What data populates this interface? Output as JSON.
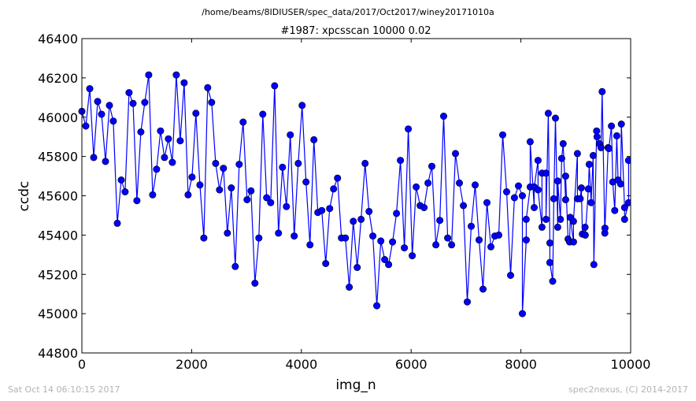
{
  "header": {
    "path": "/home/beams/8IDIUSER/spec_data/2017/Oct2017/winey20171010a"
  },
  "footer": {
    "timestamp": "Sat Oct 14 06:10:15 2017",
    "credit": "spec2nexus, (C) 2014-2017"
  },
  "chart_data": {
    "type": "line",
    "title": "#1987: xpcsscan 10000 0.02",
    "xlabel": "img_n",
    "ylabel": "ccdc",
    "xlim": [
      0,
      10000
    ],
    "ylim": [
      44800,
      46400
    ],
    "xticks": [
      0,
      2000,
      4000,
      6000,
      8000,
      10000
    ],
    "yticks": [
      44800,
      45000,
      45200,
      45400,
      45600,
      45800,
      46000,
      46200,
      46400
    ],
    "xtick_labels": [
      "0",
      "2000",
      "4000",
      "6000",
      "8000",
      "10000"
    ],
    "ytick_labels": [
      "44800",
      "45000",
      "45200",
      "45400",
      "45600",
      "45800",
      "46000",
      "46200",
      "46400"
    ],
    "grid": false,
    "legend": "none",
    "line_color": "#0000ff",
    "marker": "circle",
    "series": [
      {
        "x": [
          0,
          72,
          143,
          215,
          287,
          358,
          430,
          502,
          573,
          645,
          717,
          788,
          860,
          932,
          1003,
          1075,
          1147,
          1218,
          1290,
          1362,
          1433,
          1505,
          1577,
          1648,
          1720,
          1792,
          1863,
          1935,
          2007,
          2078,
          2150,
          2222,
          2293,
          2365,
          2437,
          2508,
          2580,
          2652,
          2723,
          2795,
          2867,
          2938,
          3010,
          3082,
          3153,
          3225,
          3297,
          3368,
          3440,
          3512,
          3583,
          3655,
          3727,
          3798,
          3870,
          3942,
          4013,
          4085,
          4157,
          4228,
          4300,
          4372,
          4443,
          4515,
          4587,
          4658,
          4730,
          4802,
          4873,
          4945,
          5017,
          5088,
          5160,
          5232,
          5303,
          5375,
          5447,
          5518,
          5590,
          5662,
          5733,
          5805,
          5877,
          5948,
          6020,
          6092,
          6163,
          6235,
          6307,
          6378,
          6450,
          6522,
          6593,
          6665,
          6737,
          6808,
          6880,
          6952,
          7023,
          7095,
          7167,
          7238,
          7310,
          7382,
          7453,
          7525,
          7597,
          7668,
          7740,
          7812,
          7883,
          7955,
          8027,
          8098,
          8170,
          8242,
          8313,
          8385,
          8457,
          8528,
          8600,
          8672,
          8743,
          8815,
          8887,
          8958,
          9030,
          9102,
          9173,
          9245,
          9317,
          9388,
          9460,
          9532,
          9603,
          9675,
          9747,
          9818,
          9890,
          9962
        ],
        "y": [
          46030,
          45955,
          46145,
          45795,
          46080,
          46015,
          45775,
          46060,
          45980,
          45460,
          45680,
          45620,
          46125,
          46070,
          45575,
          45925,
          46075,
          46215,
          45605,
          45735,
          45930,
          45795,
          45890,
          45770,
          46215,
          45880,
          46175,
          45605,
          45695,
          46020,
          45655,
          45385,
          46150,
          46075,
          45765,
          45630,
          45740,
          45410,
          45640,
          45240,
          45760,
          45975,
          45580,
          45625,
          45155,
          45385,
          46015,
          45590,
          45565,
          46160,
          45410,
          45745,
          45545,
          45910,
          45395,
          45765,
          46060,
          45670,
          45350,
          45885,
          45515,
          45525,
          45255,
          45535,
          45635,
          45690,
          45385,
          45385,
          45135,
          45470,
          45235,
          45480,
          45765,
          45520,
          45395,
          45040,
          45370,
          45275,
          45250,
          45365,
          45510,
          45780,
          45335,
          45940,
          45295,
          45645,
          45550,
          45540,
          45665,
          45750,
          45350,
          45475,
          46005,
          45385,
          45350,
          45815,
          45665,
          45550,
          45060,
          45445,
          45655,
          45375,
          45125,
          45565,
          45340,
          45395,
          45400,
          45910,
          45620,
          45195,
          45590,
          45650,
          45600,
          45375,
          45645,
          45540,
          45780,
          45440,
          45715,
          45360,
          45585,
          45440,
          45790,
          45580,
          45365,
          45365,
          45815,
          45640,
          45400,
          45760,
          45805,
          45900,
          45845,
          45435,
          45840,
          45670,
          45905,
          45660,
          45540,
          45565
        ],
        "y_tail": [
          45000,
          45480,
          45875,
          45645,
          45630,
          45715,
          45480,
          46020,
          45260,
          45165,
          45995,
          45675,
          45480,
          45865,
          45700,
          45380,
          45490,
          45470,
          45585,
          45585,
          45405,
          45440,
          45635,
          45565,
          45250,
          45930,
          45865,
          46130,
          45410,
          45845,
          45955,
          45525,
          45680,
          45965,
          45480,
          45780
        ],
        "x_tail": [
          8027,
          8098,
          8170,
          8242,
          8313,
          8385,
          8457,
          8500,
          8528,
          8580,
          8630,
          8672,
          8720,
          8770,
          8815,
          8860,
          8900,
          8958,
          9030,
          9080,
          9120,
          9170,
          9230,
          9280,
          9330,
          9380,
          9430,
          9480,
          9530,
          9590,
          9650,
          9710,
          9770,
          9830,
          9890,
          9962
        ]
      }
    ]
  }
}
